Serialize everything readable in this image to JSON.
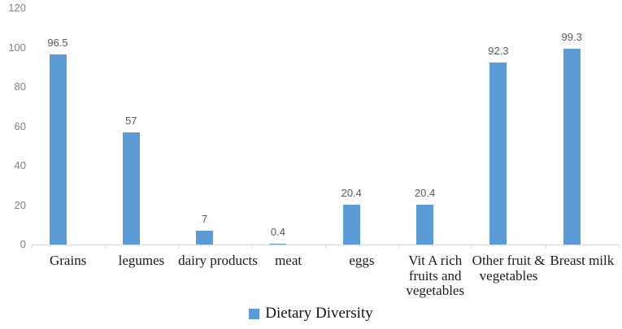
{
  "chart_data": {
    "type": "bar",
    "title": "",
    "xlabel": "",
    "ylabel": "",
    "categories": [
      "Grains",
      "legumes",
      "dairy products",
      "meat",
      "eggs",
      "Vit A rich fruits and vegetables",
      "Other fruit & vegetables",
      "Breast milk"
    ],
    "values": [
      96.5,
      57,
      7,
      0.4,
      20.4,
      20.4,
      92.3,
      99.3
    ],
    "series_name": "Dietary Diversity",
    "ylim": [
      0,
      120
    ],
    "yticks": [
      0,
      20,
      40,
      60,
      80,
      100,
      120
    ],
    "grid": false,
    "data_labels": true,
    "legend_position": "bottom",
    "category_label_lines": [
      [
        "Grains"
      ],
      [
        "legumes"
      ],
      [
        "dairy products"
      ],
      [
        "meat"
      ],
      [
        "eggs"
      ],
      [
        "Vit A rich",
        "fruits and",
        "vegetables"
      ],
      [
        "Other fruit &",
        "vegetables"
      ],
      [
        "Breast milk"
      ]
    ],
    "colors": {
      "bar": "#5B9BD5",
      "axis_line": "#D9D9D9",
      "axis_tick_label": "#808080",
      "data_label": "#595959",
      "category_label": "#1a1a1a"
    }
  }
}
